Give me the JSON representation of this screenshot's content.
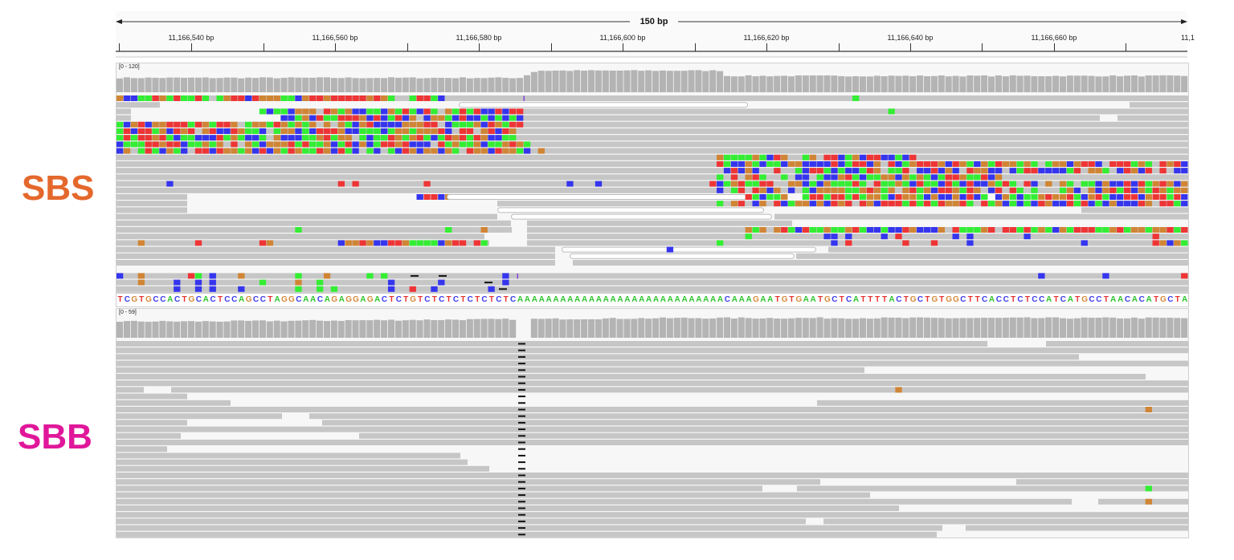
{
  "ruler": {
    "span_label": "150 bp",
    "ticks": [
      "11,166,540 bp",
      "11,166,560 bp",
      "11,166,580 bp",
      "11,166,600 bp",
      "11,166,620 bp",
      "11,166,640 bp",
      "11,166,660 bp",
      "11,1"
    ]
  },
  "tracks": [
    {
      "sample": "SBS",
      "sample_color": "#E4682C",
      "coverage_range": "[0 - 120]"
    },
    {
      "sample": "SBB",
      "sample_color": "#E0179A",
      "coverage_range": "[0 - 59]"
    }
  ],
  "sequence": "TCGTGCCACTGCACTCCAGCCTAGGCAACAGAGGAGACTCTGTCTCTCTCTCTCTCAAAAAAAAAAAAAAAAAAAAAAAAAAAAACAAAGAATGTGAATGCTCATTTTACTGCTGTGGCTTCACCTCTCCATCATGCCTAACACATGCTA",
  "base_colors": {
    "A": "#2fc42f",
    "C": "#3b3bea",
    "G": "#d4893a",
    "T": "#e83030"
  },
  "mismatch_colors": {
    "A": "#33ee33",
    "C": "#3535ee",
    "G": "#d08535",
    "T": "#ee3535"
  },
  "read_color": "#c6c6c6",
  "coverage_color": "#b4b4b4"
}
